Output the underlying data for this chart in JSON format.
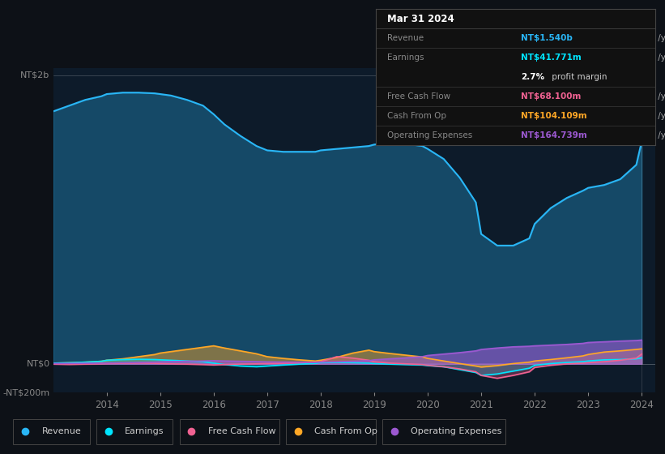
{
  "background_color": "#0d1117",
  "plot_bg_color": "#0d1b2a",
  "colors": {
    "revenue": "#29b6f6",
    "earnings": "#00e5ff",
    "free_cash_flow": "#f06292",
    "cash_from_op": "#ffa726",
    "operating_expenses": "#9c59d1"
  },
  "tooltip": {
    "date": "Mar 31 2024",
    "revenue_label": "Revenue",
    "revenue_value": "NT$1.540b",
    "revenue_color": "#29b6f6",
    "earnings_label": "Earnings",
    "earnings_value": "NT$41.771m",
    "earnings_color": "#00e5ff",
    "margin_pct": "2.7%",
    "margin_text": " profit margin",
    "fcf_label": "Free Cash Flow",
    "fcf_value": "NT$68.100m",
    "fcf_color": "#f06292",
    "cfo_label": "Cash From Op",
    "cfo_value": "NT$104.109m",
    "cfo_color": "#ffa726",
    "opex_label": "Operating Expenses",
    "opex_value": "NT$164.739m",
    "opex_color": "#9c59d1"
  },
  "legend": [
    {
      "label": "Revenue",
      "color": "#29b6f6"
    },
    {
      "label": "Earnings",
      "color": "#00e5ff"
    },
    {
      "label": "Free Cash Flow",
      "color": "#f06292"
    },
    {
      "label": "Cash From Op",
      "color": "#ffa726"
    },
    {
      "label": "Operating Expenses",
      "color": "#9c59d1"
    }
  ],
  "revenue_x": [
    2013.0,
    2013.3,
    2013.6,
    2013.9,
    2014.0,
    2014.3,
    2014.6,
    2014.9,
    2015.0,
    2015.2,
    2015.5,
    2015.8,
    2016.0,
    2016.2,
    2016.5,
    2016.8,
    2017.0,
    2017.3,
    2017.6,
    2017.9,
    2018.0,
    2018.3,
    2018.6,
    2018.9,
    2019.0,
    2019.3,
    2019.6,
    2019.9,
    2020.0,
    2020.3,
    2020.6,
    2020.9,
    2021.0,
    2021.3,
    2021.6,
    2021.9,
    2022.0,
    2022.3,
    2022.6,
    2022.9,
    2023.0,
    2023.3,
    2023.6,
    2023.9,
    2024.0
  ],
  "revenue_y": [
    1750,
    1790,
    1830,
    1855,
    1870,
    1880,
    1880,
    1875,
    1870,
    1860,
    1830,
    1790,
    1730,
    1660,
    1580,
    1510,
    1480,
    1470,
    1470,
    1470,
    1480,
    1490,
    1500,
    1510,
    1520,
    1530,
    1525,
    1510,
    1490,
    1420,
    1290,
    1120,
    900,
    820,
    820,
    870,
    970,
    1080,
    1150,
    1200,
    1220,
    1240,
    1280,
    1380,
    1540
  ],
  "earnings_x": [
    2013.0,
    2013.3,
    2013.6,
    2013.9,
    2014.0,
    2014.3,
    2014.6,
    2014.9,
    2015.0,
    2015.2,
    2015.5,
    2015.8,
    2016.0,
    2016.2,
    2016.5,
    2016.8,
    2017.0,
    2017.3,
    2017.6,
    2017.9,
    2018.0,
    2018.3,
    2018.6,
    2018.9,
    2019.0,
    2019.3,
    2019.6,
    2019.9,
    2020.0,
    2020.3,
    2020.6,
    2020.9,
    2021.0,
    2021.3,
    2021.6,
    2021.9,
    2022.0,
    2022.3,
    2022.6,
    2022.9,
    2023.0,
    2023.3,
    2023.6,
    2023.9,
    2024.0
  ],
  "earnings_y": [
    5,
    8,
    12,
    18,
    25,
    30,
    32,
    30,
    28,
    25,
    20,
    15,
    5,
    -5,
    -15,
    -20,
    -15,
    -8,
    -2,
    3,
    8,
    10,
    8,
    5,
    2,
    -2,
    -5,
    -8,
    -12,
    -20,
    -40,
    -60,
    -80,
    -70,
    -50,
    -30,
    -10,
    2,
    10,
    15,
    20,
    28,
    30,
    35,
    42
  ],
  "fcf_x": [
    2013.0,
    2013.3,
    2013.6,
    2013.9,
    2014.0,
    2014.3,
    2014.6,
    2014.9,
    2015.0,
    2015.2,
    2015.5,
    2015.8,
    2016.0,
    2016.2,
    2016.5,
    2016.8,
    2017.0,
    2017.3,
    2017.6,
    2017.9,
    2018.0,
    2018.3,
    2018.6,
    2018.9,
    2019.0,
    2019.3,
    2019.6,
    2019.9,
    2020.0,
    2020.3,
    2020.6,
    2020.9,
    2021.0,
    2021.3,
    2021.6,
    2021.9,
    2022.0,
    2022.3,
    2022.6,
    2022.9,
    2023.0,
    2023.3,
    2023.6,
    2023.9,
    2024.0
  ],
  "fcf_y": [
    -2,
    -4,
    -2,
    0,
    2,
    4,
    6,
    4,
    2,
    0,
    -2,
    -5,
    -8,
    -5,
    -2,
    0,
    2,
    4,
    8,
    12,
    15,
    50,
    40,
    25,
    15,
    5,
    0,
    -5,
    -10,
    -20,
    -35,
    -55,
    -80,
    -100,
    -80,
    -55,
    -25,
    -10,
    0,
    5,
    8,
    15,
    25,
    40,
    68
  ],
  "cfo_x": [
    2013.0,
    2013.3,
    2013.6,
    2013.9,
    2014.0,
    2014.3,
    2014.6,
    2014.9,
    2015.0,
    2015.2,
    2015.5,
    2015.8,
    2016.0,
    2016.2,
    2016.5,
    2016.8,
    2017.0,
    2017.3,
    2017.6,
    2017.9,
    2018.0,
    2018.3,
    2018.6,
    2018.9,
    2019.0,
    2019.3,
    2019.6,
    2019.9,
    2020.0,
    2020.3,
    2020.6,
    2020.9,
    2021.0,
    2021.3,
    2021.6,
    2021.9,
    2022.0,
    2022.3,
    2022.6,
    2022.9,
    2023.0,
    2023.3,
    2023.6,
    2023.9,
    2024.0
  ],
  "cfo_y": [
    5,
    8,
    12,
    18,
    25,
    35,
    50,
    65,
    75,
    85,
    100,
    115,
    125,
    110,
    90,
    70,
    50,
    38,
    28,
    20,
    25,
    45,
    75,
    95,
    85,
    72,
    60,
    48,
    38,
    20,
    2,
    -15,
    -22,
    -12,
    2,
    12,
    20,
    30,
    42,
    55,
    65,
    82,
    90,
    100,
    104
  ],
  "opex_x": [
    2013.0,
    2013.3,
    2013.6,
    2013.9,
    2014.0,
    2014.3,
    2014.6,
    2014.9,
    2015.0,
    2015.2,
    2015.5,
    2015.8,
    2016.0,
    2016.2,
    2016.5,
    2016.8,
    2017.0,
    2017.3,
    2017.6,
    2017.9,
    2018.0,
    2018.3,
    2018.6,
    2018.9,
    2019.0,
    2019.3,
    2019.6,
    2019.9,
    2020.0,
    2020.3,
    2020.6,
    2020.9,
    2021.0,
    2021.3,
    2021.6,
    2021.9,
    2022.0,
    2022.3,
    2022.6,
    2022.9,
    2023.0,
    2023.3,
    2023.6,
    2023.9,
    2024.0
  ],
  "opex_y": [
    2,
    3,
    4,
    5,
    6,
    8,
    10,
    12,
    14,
    16,
    18,
    20,
    22,
    20,
    18,
    16,
    14,
    13,
    12,
    11,
    12,
    15,
    18,
    22,
    28,
    35,
    42,
    50,
    58,
    68,
    78,
    90,
    100,
    110,
    118,
    122,
    125,
    130,
    135,
    142,
    148,
    153,
    158,
    162,
    165
  ]
}
